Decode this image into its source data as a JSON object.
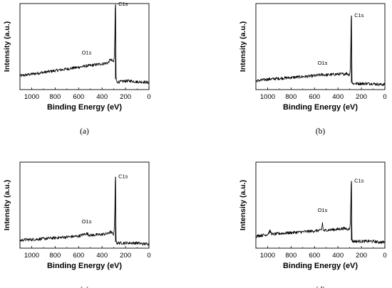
{
  "chart_data": [
    {
      "type": "line",
      "panel": "(a)",
      "xlabel": "Binding Energy (eV)",
      "ylabel": "Intensity (a.u.)",
      "xlim": [
        1100,
        0
      ],
      "x_reversed": true,
      "xticks": [
        1000,
        800,
        600,
        400,
        200,
        0
      ],
      "ylim": [
        0,
        1
      ],
      "grid": false,
      "annotations": [
        {
          "text": "C1s",
          "x": 285,
          "y": 0.99
        },
        {
          "text": "O1s",
          "x": 532,
          "y": 0.36
        }
      ],
      "series": [
        {
          "x": [
            1100,
            1050,
            1000,
            900,
            800,
            700,
            600,
            532,
            500,
            400,
            350,
            330,
            300,
            295,
            290,
            288,
            285,
            283,
            280,
            275,
            270,
            250,
            200,
            150,
            100,
            50,
            0
          ],
          "y": [
            0.16,
            0.17,
            0.18,
            0.2,
            0.22,
            0.24,
            0.26,
            0.275,
            0.28,
            0.3,
            0.31,
            0.35,
            0.32,
            0.4,
            0.7,
            0.95,
            0.99,
            0.6,
            0.12,
            0.09,
            0.09,
            0.09,
            0.1,
            0.1,
            0.09,
            0.09,
            0.08
          ]
        }
      ]
    },
    {
      "type": "line",
      "panel": "(b)",
      "xlabel": "Binding Energy (eV)",
      "ylabel": "Intensity (a.u.)",
      "xlim": [
        1100,
        0
      ],
      "x_reversed": true,
      "xticks": [
        1000,
        800,
        600,
        400,
        200,
        0
      ],
      "ylim": [
        0,
        1
      ],
      "grid": false,
      "annotations": [
        {
          "text": "C1s",
          "x": 285,
          "y": 0.86
        },
        {
          "text": "O1s",
          "x": 532,
          "y": 0.24
        }
      ],
      "series": [
        {
          "x": [
            1100,
            1050,
            1000,
            900,
            800,
            700,
            600,
            532,
            500,
            400,
            350,
            330,
            300,
            295,
            290,
            288,
            285,
            283,
            280,
            275,
            270,
            250,
            200,
            150,
            100,
            50,
            0
          ],
          "y": [
            0.1,
            0.11,
            0.12,
            0.13,
            0.14,
            0.15,
            0.16,
            0.175,
            0.17,
            0.18,
            0.18,
            0.19,
            0.17,
            0.25,
            0.55,
            0.82,
            0.86,
            0.5,
            0.08,
            0.07,
            0.07,
            0.07,
            0.07,
            0.07,
            0.07,
            0.06,
            0.06
          ]
        }
      ]
    },
    {
      "type": "line",
      "panel": "(c)",
      "xlabel": "Binding Energy (eV)",
      "ylabel": "Intensity (a.u.)",
      "xlim": [
        1100,
        0
      ],
      "x_reversed": true,
      "xticks": [
        1000,
        800,
        600,
        400,
        200,
        0
      ],
      "ylim": [
        0,
        1
      ],
      "grid": false,
      "annotations": [
        {
          "text": "C1s",
          "x": 285,
          "y": 0.83
        },
        {
          "text": "O1s",
          "x": 532,
          "y": 0.24
        }
      ],
      "series": [
        {
          "x": [
            1100,
            1050,
            1000,
            900,
            800,
            700,
            600,
            532,
            500,
            400,
            350,
            330,
            300,
            295,
            290,
            288,
            285,
            283,
            280,
            275,
            270,
            250,
            200,
            150,
            100,
            50,
            0
          ],
          "y": [
            0.09,
            0.1,
            0.1,
            0.11,
            0.12,
            0.13,
            0.14,
            0.17,
            0.15,
            0.16,
            0.17,
            0.19,
            0.16,
            0.25,
            0.5,
            0.78,
            0.83,
            0.4,
            0.07,
            0.06,
            0.06,
            0.06,
            0.06,
            0.06,
            0.06,
            0.05,
            0.05
          ]
        }
      ]
    },
    {
      "type": "line",
      "panel": "(d)",
      "xlabel": "Binding Energy (eV)",
      "ylabel": "Intensity (a.u.)",
      "xlim": [
        1100,
        0
      ],
      "x_reversed": true,
      "xticks": [
        1000,
        800,
        600,
        400,
        200,
        0
      ],
      "ylim": [
        0,
        1
      ],
      "grid": false,
      "annotations": [
        {
          "text": "C1s",
          "x": 285,
          "y": 0.78
        },
        {
          "text": "O1s",
          "x": 532,
          "y": 0.37
        }
      ],
      "series": [
        {
          "x": [
            1100,
            1050,
            1000,
            980,
            970,
            960,
            900,
            800,
            700,
            600,
            540,
            532,
            525,
            500,
            400,
            350,
            300,
            295,
            290,
            288,
            285,
            283,
            280,
            275,
            270,
            250,
            200,
            150,
            100,
            50,
            0
          ],
          "y": [
            0.14,
            0.15,
            0.16,
            0.2,
            0.18,
            0.16,
            0.17,
            0.18,
            0.19,
            0.2,
            0.21,
            0.3,
            0.2,
            0.21,
            0.22,
            0.23,
            0.22,
            0.3,
            0.55,
            0.74,
            0.78,
            0.4,
            0.09,
            0.08,
            0.08,
            0.08,
            0.08,
            0.08,
            0.08,
            0.07,
            0.07
          ]
        }
      ]
    }
  ]
}
